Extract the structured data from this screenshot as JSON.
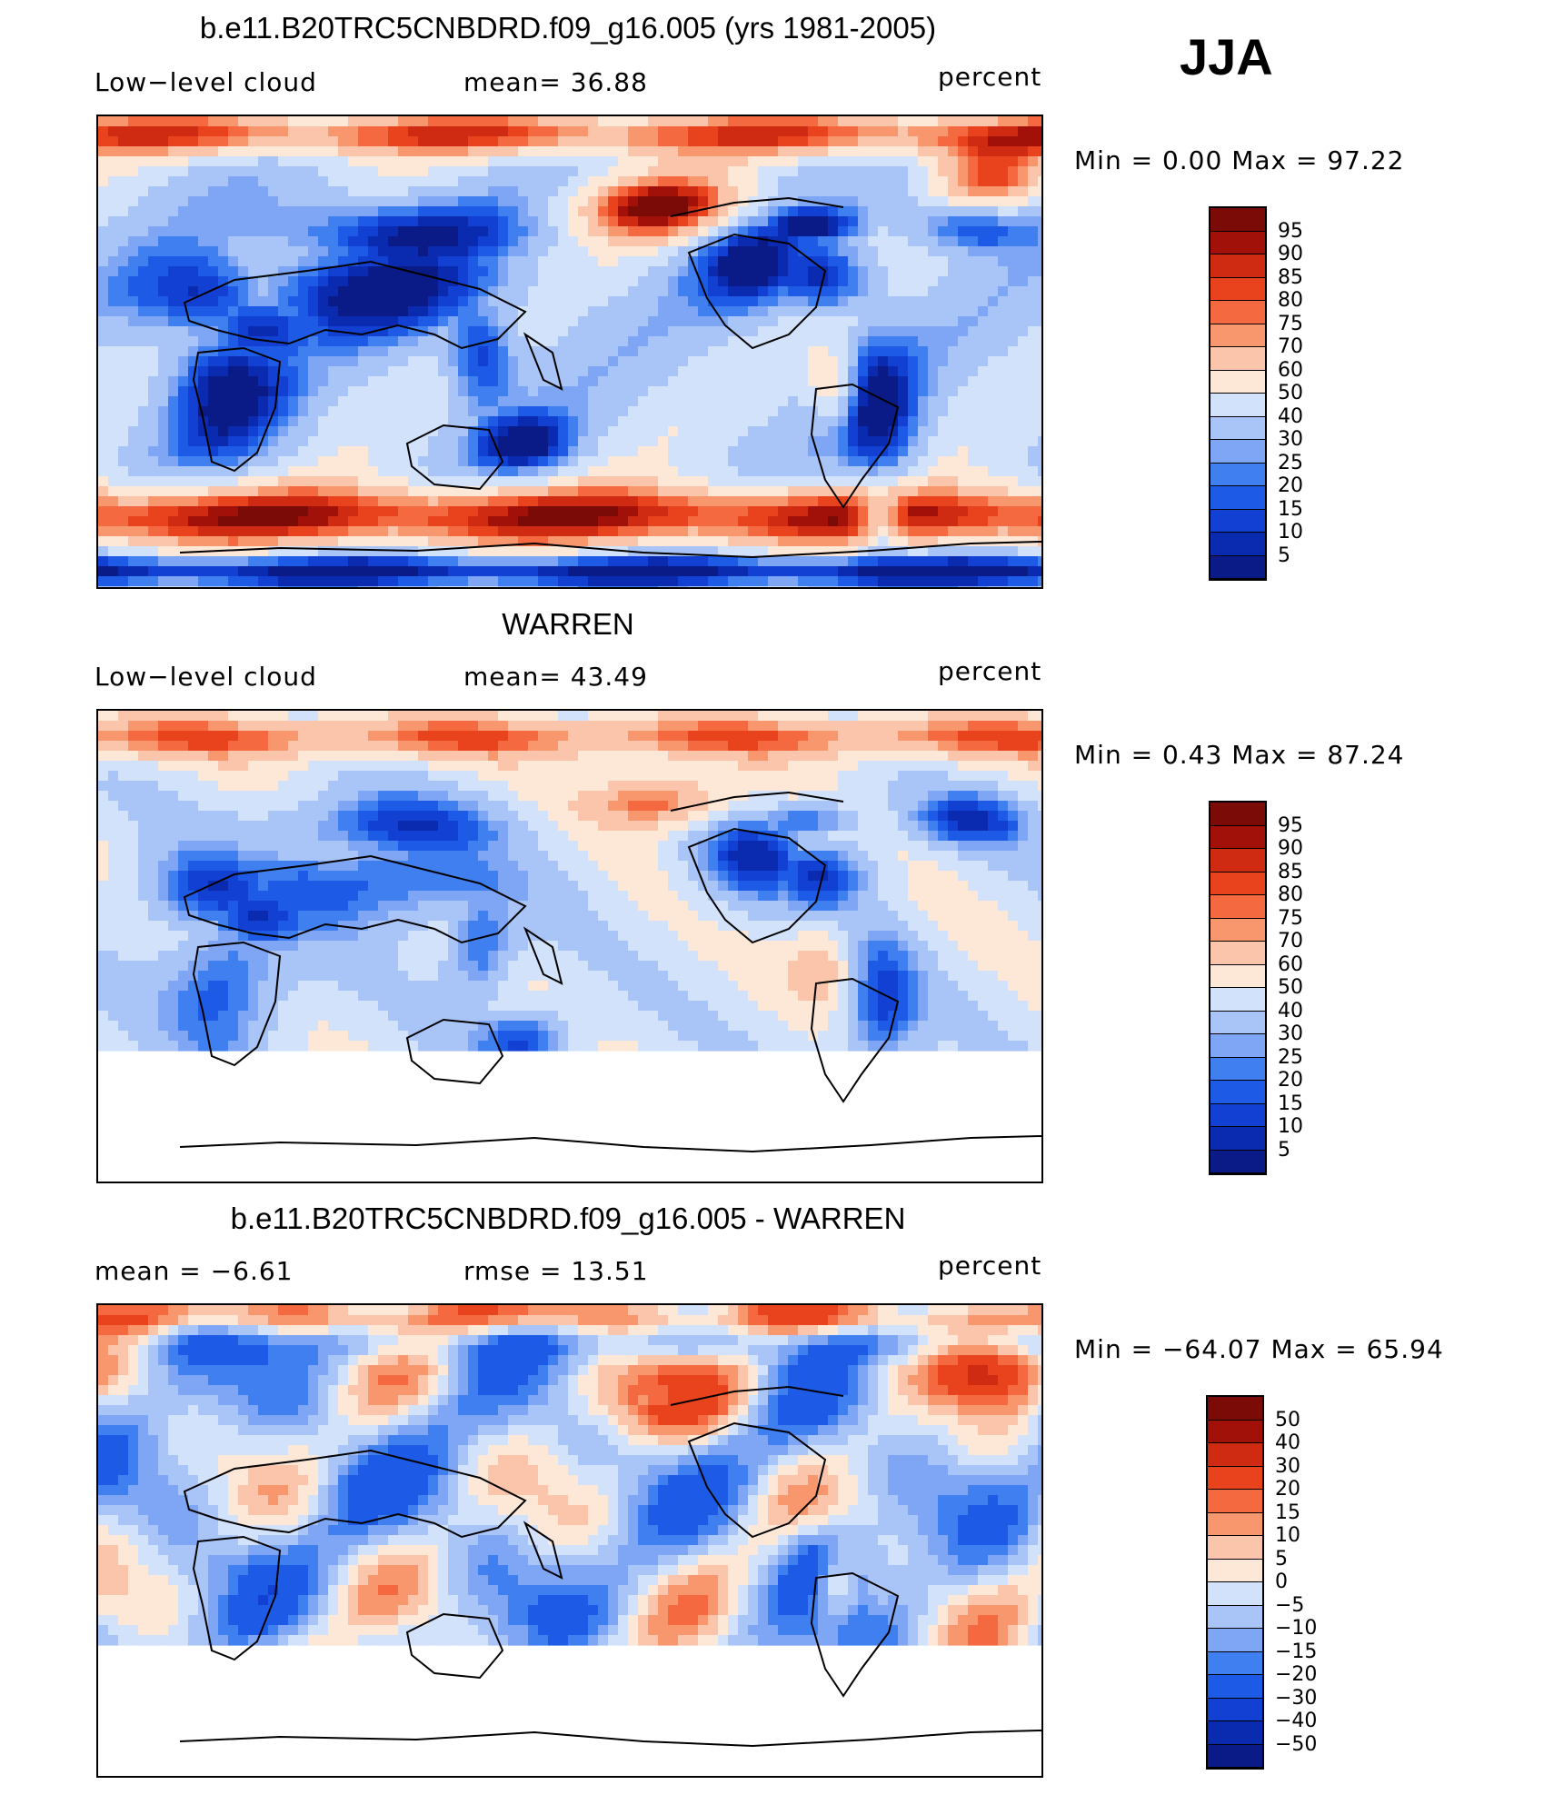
{
  "season": "JJA",
  "panels": [
    {
      "id": "model",
      "title": "b.e11.B20TRC5CNBDRD.f09_g16.005 (yrs 1981-2005)",
      "left_label": "Low−level cloud",
      "center_label": "mean=   36.88",
      "right_label": "percent",
      "minmax": "Min =    0.00 Max =   97.22",
      "field": "model",
      "missing_south": false,
      "colorbar_labels": [
        "95",
        "90",
        "85",
        "80",
        "75",
        "70",
        "60",
        "50",
        "40",
        "30",
        "25",
        "20",
        "15",
        "10",
        "5"
      ]
    },
    {
      "id": "obs",
      "title": "WARREN",
      "left_label": "Low−level cloud",
      "center_label": "mean=   43.49",
      "right_label": "percent",
      "minmax": "Min =    0.43 Max =   87.24",
      "field": "obs",
      "missing_south": true,
      "colorbar_labels": [
        "95",
        "90",
        "85",
        "80",
        "75",
        "70",
        "60",
        "50",
        "40",
        "30",
        "25",
        "20",
        "15",
        "10",
        "5"
      ]
    },
    {
      "id": "diff",
      "title": "b.e11.B20TRC5CNBDRD.f09_g16.005 - WARREN",
      "left_label": "mean =   −6.61",
      "center_label": "rmse =   13.51",
      "right_label": "percent",
      "minmax": "Min = −64.07 Max =   65.94",
      "field": "diff",
      "missing_south": true,
      "colorbar_labels": [
        "50",
        "40",
        "30",
        "20",
        "15",
        "10",
        "5",
        "0",
        "−5",
        "−10",
        "−15",
        "−20",
        "−30",
        "−40",
        "−50"
      ]
    }
  ],
  "colors": {
    "palette": [
      "#0a1a86",
      "#0a2ab0",
      "#1140d2",
      "#1d5be6",
      "#3f7ff0",
      "#7ea6f4",
      "#a9c5f8",
      "#d2e2fb",
      "#fde8d8",
      "#fbc5ab",
      "#f8976e",
      "#f4693f",
      "#e9431d",
      "#cf2a12",
      "#a21109",
      "#7b0b07"
    ]
  }
}
